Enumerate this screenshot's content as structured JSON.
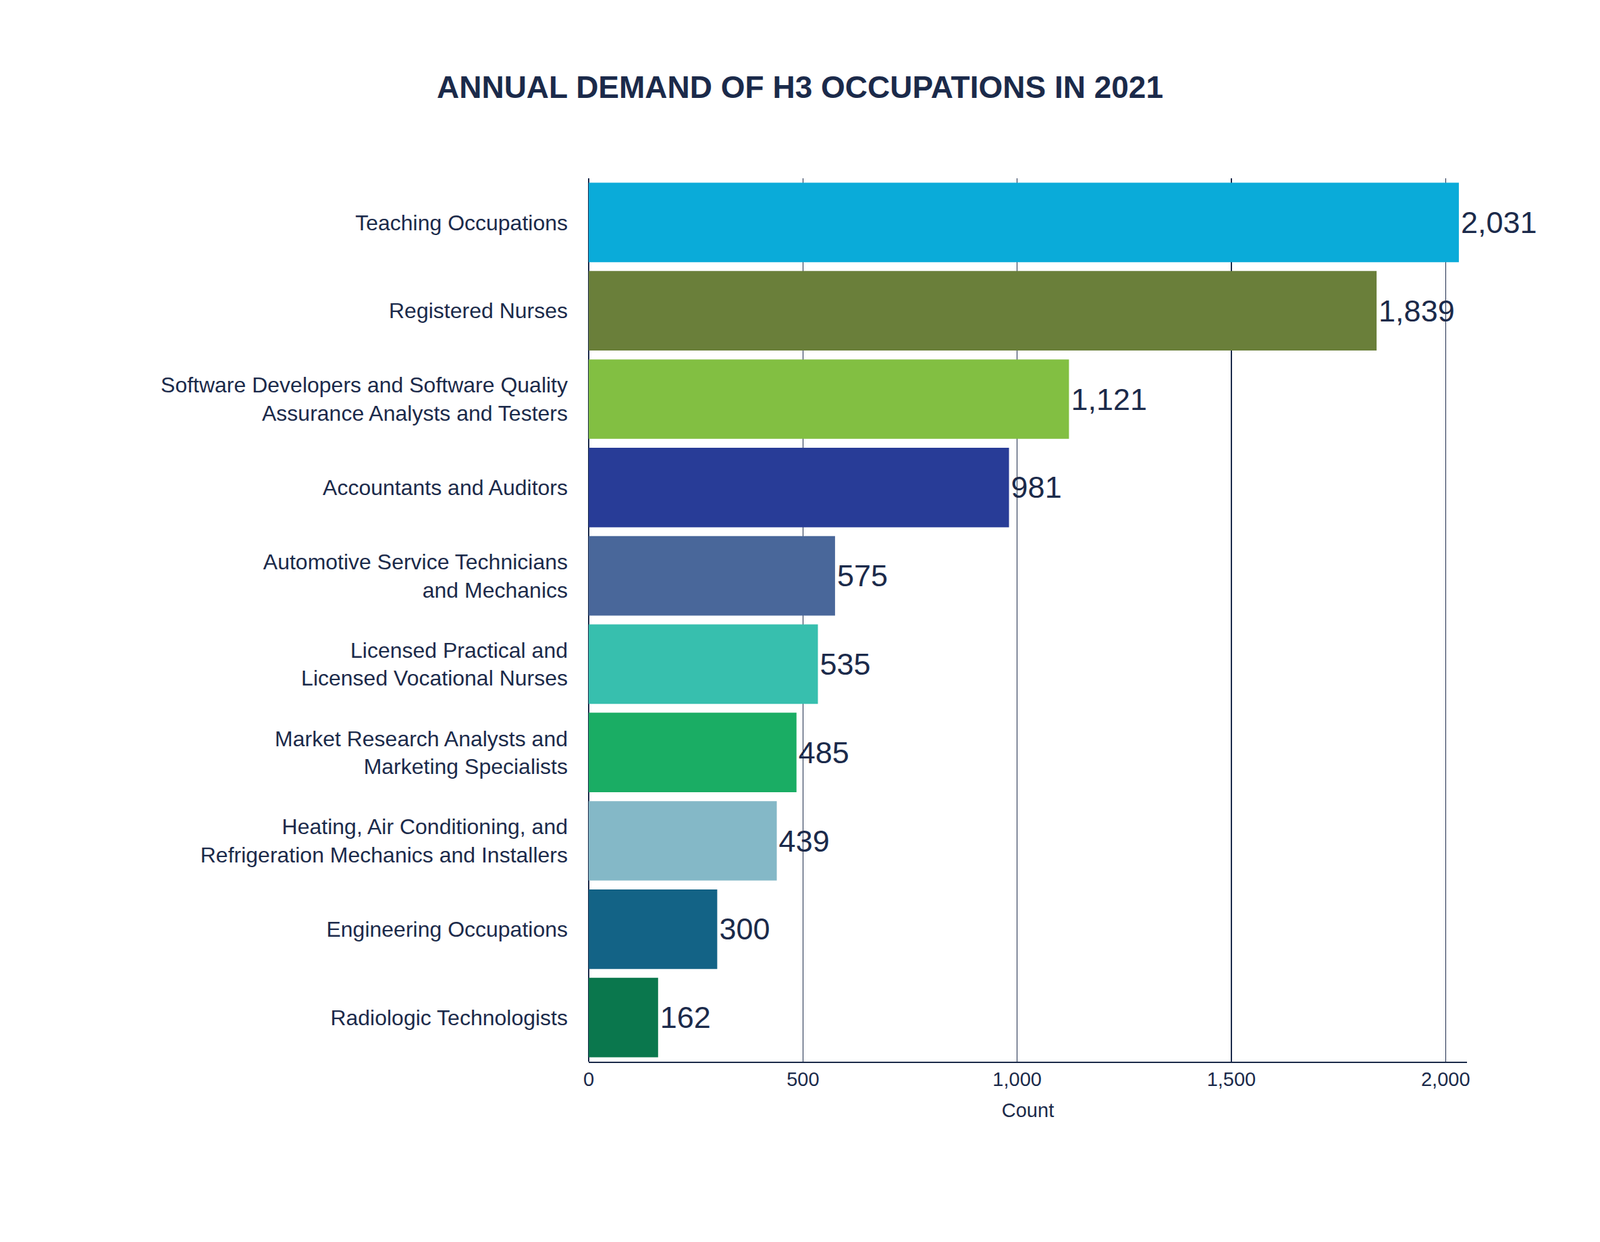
{
  "chart_data": {
    "type": "bar",
    "orientation": "horizontal",
    "title": "ANNUAL DEMAND OF H3 OCCUPATIONS IN 2021",
    "x_label": "Count",
    "categories": [
      "Teaching Occupations",
      "Registered Nurses",
      "Software Developers and Software Quality\nAssurance Analysts and Testers",
      "Accountants and Auditors",
      "Automotive Service Technicians\nand Mechanics",
      "Licensed Practical and\nLicensed Vocational Nurses",
      "Market Research Analysts and\nMarketing Specialists",
      "Heating, Air Conditioning, and\nRefrigeration Mechanics and Installers",
      "Engineering Occupations",
      "Radiologic Technologists"
    ],
    "values": [
      2031,
      1839,
      1121,
      981,
      575,
      535,
      485,
      439,
      300,
      162
    ],
    "value_labels": [
      "2,031",
      "1,839",
      "1,121",
      "981",
      "575",
      "535",
      "485",
      "439",
      "300",
      "162"
    ],
    "colors": [
      "#0aabd9",
      "#6a7f3a",
      "#82bf42",
      "#283c97",
      "#49679a",
      "#37bfae",
      "#1aad64",
      "#84b8c7",
      "#136386",
      "#0a774d"
    ],
    "data_labels": true,
    "xlim": [
      0,
      2050
    ],
    "xticks": [
      0,
      500,
      {
        "value": 1000,
        "label": "1,000"
      },
      {
        "value": 1500,
        "label": "1,500"
      },
      {
        "value": 2000,
        "label": "2,000"
      }
    ],
    "grid": true
  }
}
